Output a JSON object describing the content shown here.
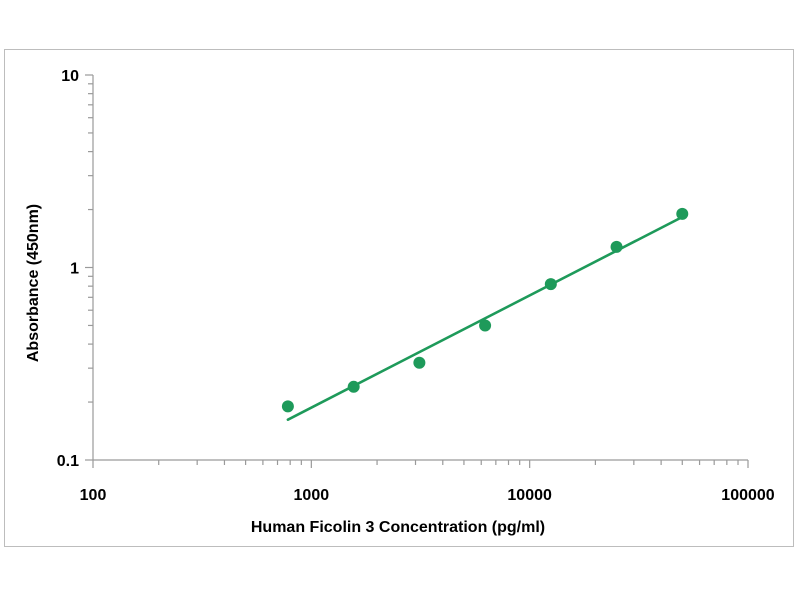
{
  "chart_data": {
    "type": "scatter",
    "title": "",
    "xlabel": "Human Ficolin 3 Concentration (pg/ml)",
    "ylabel": "Absorbance (450nm)",
    "x_scale": "log",
    "y_scale": "log",
    "xlim": [
      100,
      100000
    ],
    "ylim": [
      0.1,
      10
    ],
    "x_ticks": [
      100,
      1000,
      10000,
      100000
    ],
    "x_tick_labels": [
      "100",
      "1000",
      "10000",
      "100000"
    ],
    "y_ticks": [
      0.1,
      1,
      10
    ],
    "y_tick_labels": [
      "0.1",
      "1",
      "10"
    ],
    "grid": false,
    "legend": "none",
    "color": "#1e9a5a",
    "points": [
      {
        "x": 781,
        "y": 0.19
      },
      {
        "x": 1563,
        "y": 0.24
      },
      {
        "x": 3125,
        "y": 0.32
      },
      {
        "x": 6250,
        "y": 0.5
      },
      {
        "x": 12500,
        "y": 0.82
      },
      {
        "x": 25000,
        "y": 1.28
      },
      {
        "x": 50000,
        "y": 1.9
      }
    ],
    "fit_line": [
      {
        "x": 781,
        "y": 0.162
      },
      {
        "x": 50000,
        "y": 1.83
      }
    ]
  }
}
